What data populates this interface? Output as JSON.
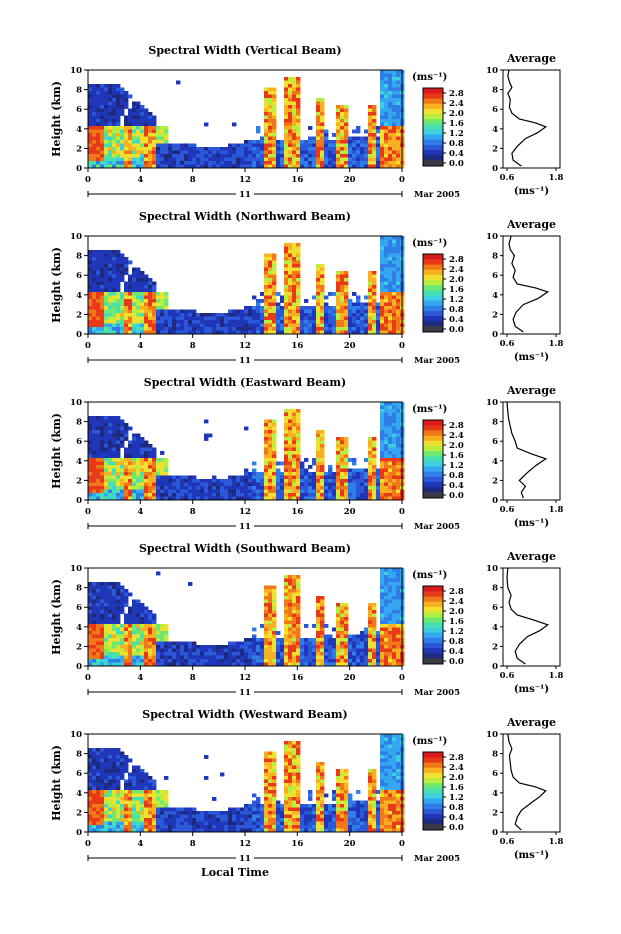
{
  "colors": {
    "scale": [
      "#1e2a80",
      "#2036b8",
      "#2a58d8",
      "#2f7ee8",
      "#35a6f0",
      "#3ccfe0",
      "#46e0b0",
      "#70e870",
      "#b8ee40",
      "#f0e030",
      "#f8b020",
      "#f07818",
      "#e83a18",
      "#d81a1a"
    ],
    "below_scale": "#3a3a48"
  },
  "chart_data": [
    {
      "type": "heatmap",
      "title": "Spectral Width (Vertical Beam)",
      "ylabel": "Height (km)",
      "ylim": [
        0,
        10
      ],
      "yticks": [
        "0",
        "2",
        "4",
        "6",
        "8",
        "10"
      ],
      "xlim": [
        0,
        24
      ],
      "xticks": [
        "0",
        "4",
        "8",
        "12",
        "16",
        "20",
        "0"
      ],
      "date_label": "11",
      "date_suffix": "Mar 2005",
      "colorbar": {
        "unit": "(ms⁻¹)",
        "ticks": [
          "2.8",
          "2.4",
          "2.0",
          "1.6",
          "1.2",
          "0.8",
          "0.4",
          "0.0"
        ],
        "range": [
          0,
          3.2
        ]
      },
      "average": {
        "title": "Average",
        "xticks": [
          "0.6",
          "1.8"
        ],
        "xlabel": "(ms⁻¹)",
        "profile": [
          [
            0.95,
            0.2
          ],
          [
            0.75,
            0.8
          ],
          [
            0.72,
            1.5
          ],
          [
            0.85,
            2.2
          ],
          [
            1.05,
            3.0
          ],
          [
            1.35,
            3.6
          ],
          [
            1.55,
            4.2
          ],
          [
            1.3,
            4.6
          ],
          [
            0.9,
            5.0
          ],
          [
            0.72,
            5.6
          ],
          [
            0.66,
            6.2
          ],
          [
            0.68,
            7.0
          ],
          [
            0.62,
            7.6
          ],
          [
            0.72,
            8.2
          ],
          [
            0.66,
            8.8
          ],
          [
            0.62,
            9.4
          ],
          [
            0.65,
            10
          ]
        ]
      }
    },
    {
      "type": "heatmap",
      "title": "Spectral Width (Northward Beam)",
      "ylabel": "Height (km)",
      "ylim": [
        0,
        10
      ],
      "yticks": [
        "0",
        "2",
        "4",
        "6",
        "8",
        "10"
      ],
      "xlim": [
        0,
        24
      ],
      "xticks": [
        "0",
        "4",
        "8",
        "12",
        "16",
        "20",
        "0"
      ],
      "date_label": "11",
      "date_suffix": "Mar 2005",
      "colorbar": {
        "unit": "(ms⁻¹)",
        "ticks": [
          "2.8",
          "2.4",
          "2.0",
          "1.6",
          "1.2",
          "0.8",
          "0.4",
          "0.0"
        ],
        "range": [
          0,
          3.2
        ]
      },
      "average": {
        "title": "Average",
        "xticks": [
          "0.6",
          "1.8"
        ],
        "xlabel": "(ms⁻¹)",
        "profile": [
          [
            1.0,
            0.2
          ],
          [
            0.8,
            0.8
          ],
          [
            0.75,
            1.5
          ],
          [
            0.82,
            2.2
          ],
          [
            1.0,
            3.0
          ],
          [
            1.35,
            3.6
          ],
          [
            1.6,
            4.3
          ],
          [
            1.3,
            4.7
          ],
          [
            0.85,
            5.1
          ],
          [
            0.75,
            5.8
          ],
          [
            0.8,
            6.5
          ],
          [
            0.72,
            7.2
          ],
          [
            0.78,
            8.0
          ],
          [
            0.68,
            8.6
          ],
          [
            0.65,
            9.2
          ],
          [
            0.7,
            10
          ]
        ]
      }
    },
    {
      "type": "heatmap",
      "title": "Spectral Width (Eastward Beam)",
      "ylabel": "Height (km)",
      "ylim": [
        0,
        10
      ],
      "yticks": [
        "0",
        "2",
        "4",
        "6",
        "8",
        "10"
      ],
      "xlim": [
        0,
        24
      ],
      "xticks": [
        "0",
        "4",
        "8",
        "12",
        "16",
        "20",
        "0"
      ],
      "date_label": "11",
      "date_suffix": "Mar 2005",
      "colorbar": {
        "unit": "(ms⁻¹)",
        "ticks": [
          "2.8",
          "2.4",
          "2.0",
          "1.6",
          "1.2",
          "0.8",
          "0.4",
          "0.0"
        ],
        "range": [
          0,
          3.2
        ]
      },
      "average": {
        "title": "Average",
        "xticks": [
          "0.6",
          "1.8"
        ],
        "xlabel": "(ms⁻¹)",
        "profile": [
          [
            1.0,
            0.2
          ],
          [
            0.95,
            0.8
          ],
          [
            1.05,
            1.4
          ],
          [
            0.9,
            2.0
          ],
          [
            1.1,
            2.8
          ],
          [
            1.3,
            3.5
          ],
          [
            1.55,
            4.2
          ],
          [
            1.2,
            4.7
          ],
          [
            0.85,
            5.3
          ],
          [
            0.8,
            6.0
          ],
          [
            0.72,
            6.8
          ],
          [
            0.68,
            7.5
          ],
          [
            0.64,
            8.3
          ],
          [
            0.62,
            9.0
          ],
          [
            0.6,
            10
          ]
        ]
      }
    },
    {
      "type": "heatmap",
      "title": "Spectral Width (Southward Beam)",
      "ylabel": "Height (km)",
      "ylim": [
        0,
        10
      ],
      "yticks": [
        "0",
        "2",
        "4",
        "6",
        "8",
        "10"
      ],
      "xlim": [
        0,
        24
      ],
      "xticks": [
        "0",
        "4",
        "8",
        "12",
        "16",
        "20",
        "0"
      ],
      "date_label": "11",
      "date_suffix": "Mar 2005",
      "colorbar": {
        "unit": "(ms⁻¹)",
        "ticks": [
          "2.8",
          "2.4",
          "2.0",
          "1.6",
          "1.2",
          "0.8",
          "0.4",
          "0.0"
        ],
        "range": [
          0,
          3.2
        ]
      },
      "average": {
        "title": "Average",
        "xticks": [
          "0.6",
          "1.8"
        ],
        "xlabel": "(ms⁻¹)",
        "profile": [
          [
            1.05,
            0.2
          ],
          [
            0.85,
            0.8
          ],
          [
            0.8,
            1.5
          ],
          [
            0.9,
            2.2
          ],
          [
            1.1,
            3.0
          ],
          [
            1.4,
            3.6
          ],
          [
            1.6,
            4.2
          ],
          [
            1.25,
            4.7
          ],
          [
            0.85,
            5.2
          ],
          [
            0.7,
            5.8
          ],
          [
            0.65,
            6.5
          ],
          [
            0.7,
            7.2
          ],
          [
            0.62,
            8.0
          ],
          [
            0.6,
            9.0
          ],
          [
            0.62,
            10
          ]
        ]
      }
    },
    {
      "type": "heatmap",
      "title": "Spectral Width (Westward Beam)",
      "ylabel": "Height (km)",
      "ylim": [
        0,
        10
      ],
      "yticks": [
        "0",
        "2",
        "4",
        "6",
        "8",
        "10"
      ],
      "xlim": [
        0,
        24
      ],
      "xticks": [
        "0",
        "4",
        "8",
        "12",
        "16",
        "20",
        "0"
      ],
      "date_label": "11",
      "date_suffix": "Mar 2005",
      "xlabel": "Local Time",
      "colorbar": {
        "unit": "(ms⁻¹)",
        "ticks": [
          "2.8",
          "2.4",
          "2.0",
          "1.6",
          "1.2",
          "0.8",
          "0.4",
          "0.0"
        ],
        "range": [
          0,
          3.2
        ]
      },
      "average": {
        "title": "Average",
        "xticks": [
          "0.6",
          "1.8"
        ],
        "xlabel": "(ms⁻¹)",
        "profile": [
          [
            0.95,
            0.2
          ],
          [
            0.8,
            0.8
          ],
          [
            0.85,
            1.5
          ],
          [
            0.95,
            2.2
          ],
          [
            1.2,
            3.0
          ],
          [
            1.4,
            3.6
          ],
          [
            1.55,
            4.2
          ],
          [
            1.3,
            4.6
          ],
          [
            0.9,
            5.0
          ],
          [
            0.75,
            5.6
          ],
          [
            0.7,
            6.3
          ],
          [
            0.68,
            7.0
          ],
          [
            0.66,
            7.8
          ],
          [
            0.72,
            8.5
          ],
          [
            0.65,
            9.2
          ],
          [
            0.62,
            10
          ]
        ]
      }
    }
  ]
}
